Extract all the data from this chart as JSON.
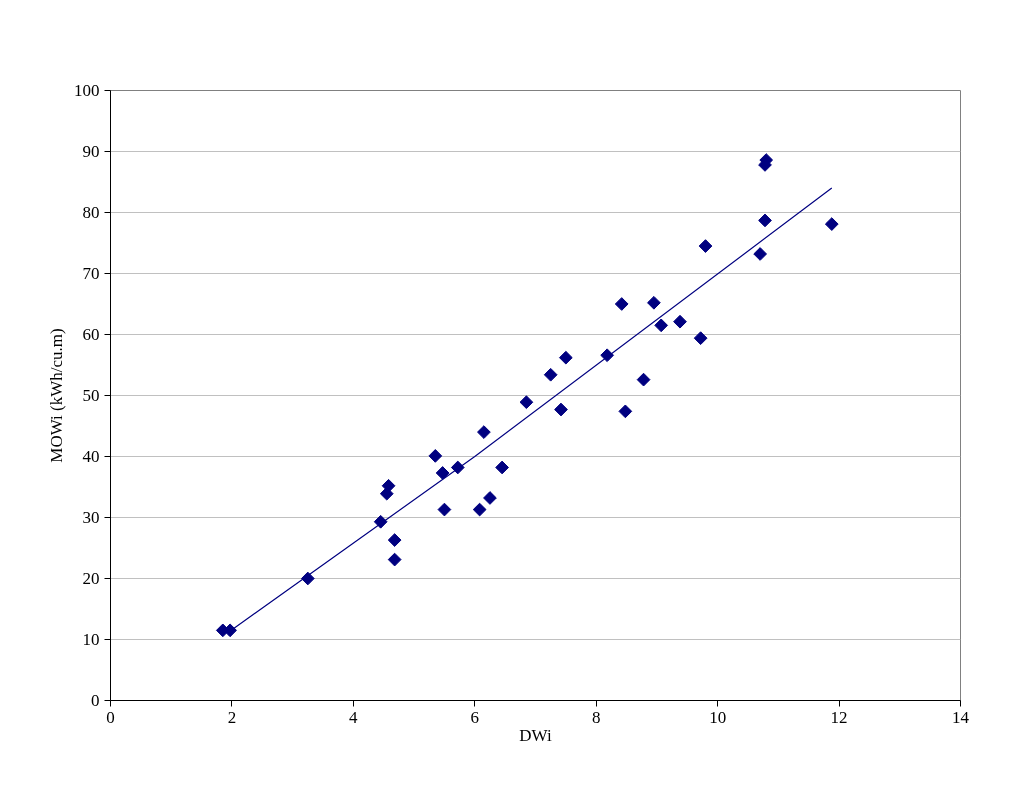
{
  "chart_data": {
    "type": "scatter",
    "xlabel": "DWi",
    "ylabel": "MOWi (kWh/cu.m)",
    "xlim": [
      0,
      14
    ],
    "ylim": [
      0,
      100
    ],
    "xticks": [
      0,
      2,
      4,
      6,
      8,
      10,
      12,
      14
    ],
    "yticks": [
      0,
      10,
      20,
      30,
      40,
      50,
      60,
      70,
      80,
      90,
      100
    ],
    "grid": "y",
    "series": [
      {
        "marker": "diamond",
        "color": "#000080",
        "x": [
          1.85,
          1.97,
          3.25,
          4.45,
          4.55,
          4.58,
          4.68,
          4.68,
          5.35,
          5.47,
          5.5,
          5.72,
          6.08,
          6.15,
          6.25,
          6.45,
          6.85,
          7.25,
          7.42,
          7.5,
          8.18,
          8.42,
          8.48,
          8.78,
          8.95,
          9.07,
          9.38,
          9.72,
          9.8,
          10.7,
          10.78,
          10.78,
          10.8,
          11.88
        ],
        "values": [
          11.5,
          11.5,
          20,
          29.3,
          33.9,
          35.2,
          26.3,
          23.1,
          40.1,
          37.3,
          31.3,
          38.2,
          31.3,
          44,
          33.2,
          38.2,
          48.9,
          53.4,
          47.7,
          56.2,
          56.6,
          65,
          47.4,
          52.6,
          65.2,
          61.5,
          62.1,
          59.4,
          74.5,
          73.2,
          78.7,
          87.8,
          88.6,
          78.1
        ]
      },
      {
        "type": "line",
        "color": "#000080",
        "x": [
          2,
          6,
          11.88
        ],
        "values": [
          11.6,
          40,
          84
        ]
      }
    ]
  }
}
